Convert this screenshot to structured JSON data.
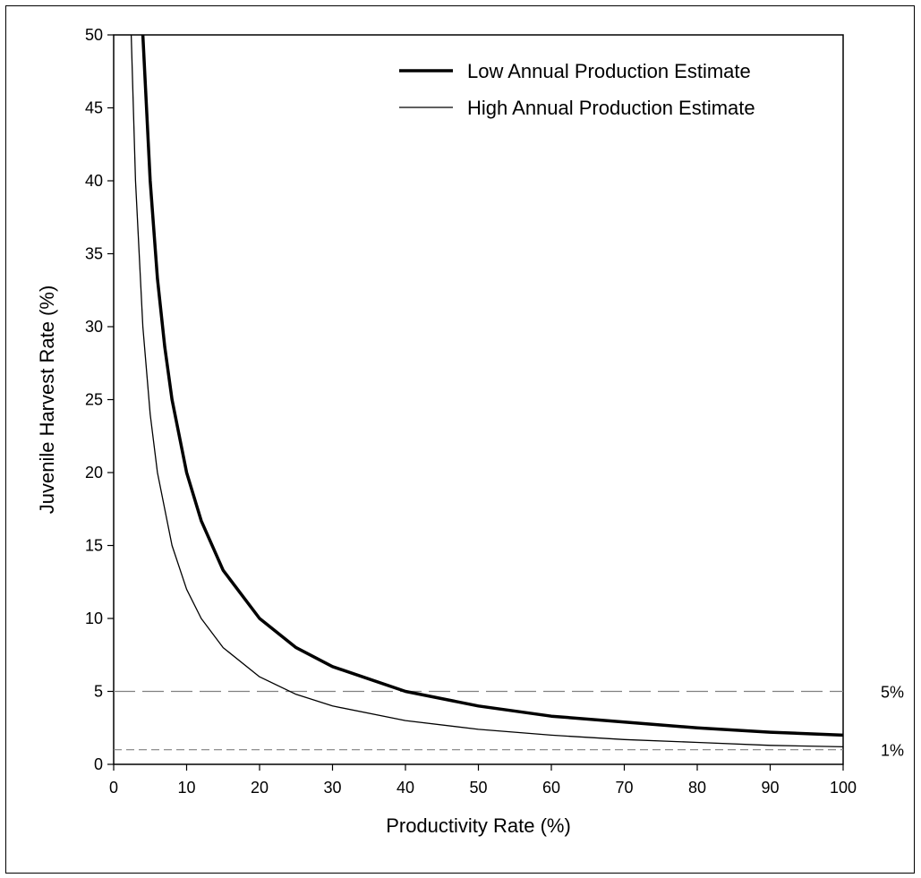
{
  "chart_data": {
    "type": "line",
    "title": "",
    "xlabel": "Productivity Rate (%)",
    "ylabel": "Juvenile Harvest Rate (%)",
    "xlim": [
      0,
      100
    ],
    "ylim": [
      0,
      50
    ],
    "xticks": [
      0,
      10,
      20,
      30,
      40,
      50,
      60,
      70,
      80,
      90,
      100
    ],
    "yticks": [
      0,
      5,
      10,
      15,
      20,
      25,
      30,
      35,
      40,
      45,
      50
    ],
    "grid": false,
    "legend_position": "top-right",
    "series": [
      {
        "name": "Low Annual Production Estimate",
        "color": "#000000",
        "style": "thick",
        "x": [
          4,
          5,
          6,
          7,
          8,
          10,
          12,
          15,
          20,
          25,
          30,
          40,
          50,
          60,
          70,
          80,
          90,
          100
        ],
        "y": [
          50,
          40,
          33.3,
          28.6,
          25,
          20,
          16.7,
          13.3,
          10,
          8,
          6.7,
          5,
          4,
          3.3,
          2.9,
          2.5,
          2.2,
          2
        ]
      },
      {
        "name": "High Annual Production Estimate",
        "color": "#000000",
        "style": "thin",
        "x": [
          2.4,
          3,
          4,
          5,
          6,
          8,
          10,
          12,
          15,
          20,
          25,
          30,
          40,
          50,
          60,
          70,
          80,
          90,
          100
        ],
        "y": [
          50,
          40,
          30,
          24,
          20,
          15,
          12,
          10,
          8,
          6,
          4.8,
          4,
          3,
          2.4,
          2,
          1.7,
          1.5,
          1.3,
          1.2
        ]
      }
    ],
    "reference_lines": [
      {
        "y": 5,
        "label": "5%",
        "style": "long-dash",
        "color": "#808080"
      },
      {
        "y": 1,
        "label": "1%",
        "style": "short-dash",
        "color": "#808080"
      }
    ]
  }
}
